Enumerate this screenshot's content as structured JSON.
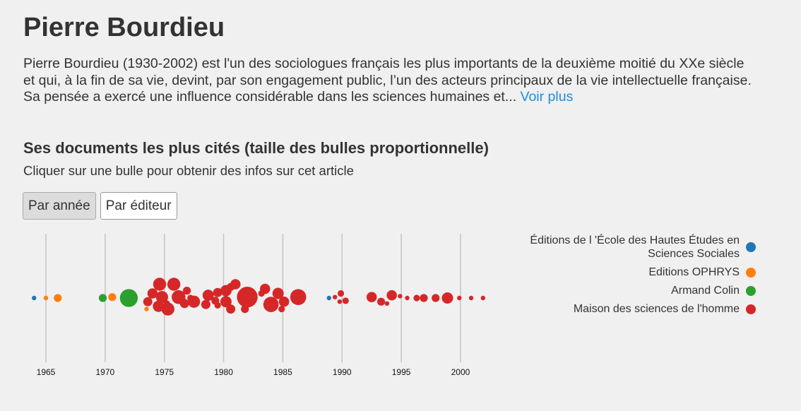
{
  "author": {
    "name": "Pierre Bourdieu",
    "bio": "Pierre Bourdieu (1930-2002) est l'un des sociologues français les plus importants de la deuxième moitié du XXe siècle et qui, à la fin de sa vie, devint, par son engagement public, l’un des acteurs principaux de la vie intellectuelle française. Sa pensée a exercé une influence considérable dans les sciences humaines et... ",
    "more_link": "Voir plus"
  },
  "section": {
    "title": "Ses documents les plus cités (taille des bulles proportionnelle)",
    "hint": "Cliquer sur une bulle pour obtenir des infos sur cet article"
  },
  "toggle": {
    "by_year": "Par année",
    "by_publisher": "Par éditeur",
    "active": "by_year"
  },
  "chart_data": {
    "type": "scatter",
    "title": "",
    "xlabel": "",
    "ylabel": "",
    "xlim": [
      1963,
      2004
    ],
    "x_ticks": [
      1965,
      1970,
      1975,
      1980,
      1985,
      1990,
      1995,
      2000
    ],
    "grid": true,
    "legend_position": "top-right",
    "series": [
      {
        "name": "Éditions de l 'École des Hautes Études en Sciences Sociales",
        "color": "#1f77b4",
        "points": [
          {
            "x": 1964.0,
            "offset": 0,
            "size": 1
          },
          {
            "x": 1988.9,
            "offset": 0,
            "size": 1
          }
        ]
      },
      {
        "name": "Editions OPHRYS",
        "color": "#ff7f0e",
        "points": [
          {
            "x": 1965.0,
            "offset": 0,
            "size": 1
          },
          {
            "x": 1966.0,
            "offset": 0,
            "size": 3
          },
          {
            "x": 1970.6,
            "offset": -0.1,
            "size": 3
          },
          {
            "x": 1973.5,
            "offset": 1.2,
            "size": 1
          }
        ]
      },
      {
        "name": "Armand Colin",
        "color": "#2ca02c",
        "points": [
          {
            "x": 1969.8,
            "offset": 0,
            "size": 3
          },
          {
            "x": 1972.0,
            "offset": 0,
            "size": 15
          }
        ]
      },
      {
        "name": "Maison des sciences de l'homme",
        "color": "#d62728",
        "points": [
          {
            "x": 1974.6,
            "offset": -1.5,
            "size": 8
          },
          {
            "x": 1975.8,
            "offset": -1.5,
            "size": 8
          },
          {
            "x": 1974.0,
            "offset": -0.5,
            "size": 5
          },
          {
            "x": 1974.8,
            "offset": -0.1,
            "size": 7
          },
          {
            "x": 1976.2,
            "offset": -0.1,
            "size": 9
          },
          {
            "x": 1973.6,
            "offset": 0.4,
            "size": 4
          },
          {
            "x": 1976.9,
            "offset": -0.8,
            "size": 3
          },
          {
            "x": 1977.2,
            "offset": 0,
            "size": 2
          },
          {
            "x": 1977.5,
            "offset": 0.4,
            "size": 7
          },
          {
            "x": 1974.5,
            "offset": 0.9,
            "size": 6
          },
          {
            "x": 1975.2,
            "offset": 0.6,
            "size": 2
          },
          {
            "x": 1976.7,
            "offset": 0.6,
            "size": 4
          },
          {
            "x": 1975.3,
            "offset": 1.2,
            "size": 8
          },
          {
            "x": 1978.7,
            "offset": -0.3,
            "size": 6
          },
          {
            "x": 1979.5,
            "offset": -0.6,
            "size": 4
          },
          {
            "x": 1980.2,
            "offset": -0.8,
            "size": 6
          },
          {
            "x": 1980.6,
            "offset": -1.2,
            "size": 3
          },
          {
            "x": 1981.0,
            "offset": -1.5,
            "size": 5
          },
          {
            "x": 1979.3,
            "offset": 0.3,
            "size": 3
          },
          {
            "x": 1980.2,
            "offset": 0.4,
            "size": 6
          },
          {
            "x": 1982.0,
            "offset": -0.1,
            "size": 20
          },
          {
            "x": 1978.5,
            "offset": 0.7,
            "size": 4
          },
          {
            "x": 1979.5,
            "offset": 0.8,
            "size": 2
          },
          {
            "x": 1980.6,
            "offset": 1.2,
            "size": 4
          },
          {
            "x": 1981.8,
            "offset": 1.2,
            "size": 3
          },
          {
            "x": 1983.5,
            "offset": -1.0,
            "size": 5
          },
          {
            "x": 1983.2,
            "offset": -0.5,
            "size": 2
          },
          {
            "x": 1984.6,
            "offset": -0.5,
            "size": 6
          },
          {
            "x": 1984.0,
            "offset": 0.7,
            "size": 11
          },
          {
            "x": 1985.1,
            "offset": 0.4,
            "size": 5
          },
          {
            "x": 1984.9,
            "offset": 1.2,
            "size": 2
          },
          {
            "x": 1986.3,
            "offset": -0.1,
            "size": 12
          },
          {
            "x": 1989.4,
            "offset": -0.1,
            "size": 1
          },
          {
            "x": 1989.9,
            "offset": -0.5,
            "size": 2
          },
          {
            "x": 1989.8,
            "offset": 0.4,
            "size": 1
          },
          {
            "x": 1990.3,
            "offset": 0.3,
            "size": 2
          },
          {
            "x": 1992.5,
            "offset": -0.1,
            "size": 5
          },
          {
            "x": 1993.3,
            "offset": 0.4,
            "size": 3
          },
          {
            "x": 1993.8,
            "offset": 0.6,
            "size": 1
          },
          {
            "x": 1994.2,
            "offset": -0.3,
            "size": 5
          },
          {
            "x": 1994.9,
            "offset": -0.2,
            "size": 1
          },
          {
            "x": 1995.5,
            "offset": 0,
            "size": 1
          },
          {
            "x": 1996.3,
            "offset": 0,
            "size": 2
          },
          {
            "x": 1996.9,
            "offset": 0,
            "size": 3
          },
          {
            "x": 1997.9,
            "offset": 0,
            "size": 3
          },
          {
            "x": 1998.9,
            "offset": 0,
            "size": 6
          },
          {
            "x": 1999.9,
            "offset": 0,
            "size": 1
          },
          {
            "x": 2000.9,
            "offset": 0,
            "size": 1
          },
          {
            "x": 2001.9,
            "offset": 0,
            "size": 1
          }
        ]
      }
    ]
  }
}
